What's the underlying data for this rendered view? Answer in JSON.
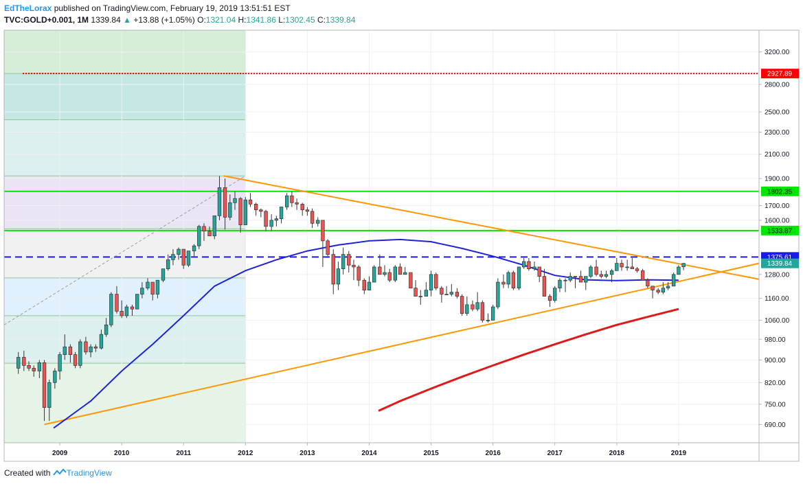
{
  "header": {
    "author": "EdTheLorax",
    "published": "published on TradingView.com, February 19, 2019 13:51:51 EST",
    "symbol": "TVC:GOLD+0.001, 1M",
    "last": "1339.84",
    "arrow": "▲",
    "change": "+13.88 (+1.05%)",
    "o_label": "O:",
    "o_value": "1321.04",
    "h_label": "H:",
    "h_value": "1341.86",
    "l_label": "L:",
    "l_value": "1302.45",
    "c_label": "C:",
    "c_value": "1339.84"
  },
  "footer": {
    "created_with": "Created with",
    "brand": "TradingView"
  },
  "colors": {
    "up": "#26a69a",
    "down": "#ef5350",
    "ma_blue": "#1e22d8",
    "ma_red": "#e11919",
    "trend_orange": "#ff9800",
    "level_green": "#00e600",
    "level_red": "#ff0000",
    "level_blue": "#1a1ae6"
  },
  "chart_data": {
    "type": "candlestick",
    "scale": "log",
    "ylim": [
      640,
      3500
    ],
    "xlim": [
      2008.1,
      2020.3
    ],
    "grid": true,
    "y_ticks": [
      "3200.00",
      "2800.00",
      "2500.00",
      "2300.00",
      "2100.00",
      "1900.00",
      "1700.00",
      "1600.00",
      "1280.00",
      "1160.00",
      "1060.00",
      "980.00",
      "900.00",
      "820.00",
      "750.00",
      "690.00"
    ],
    "x_ticks": [
      {
        "label": "2009",
        "x": 2009
      },
      {
        "label": "2010",
        "x": 2010
      },
      {
        "label": "2011",
        "x": 2011
      },
      {
        "label": "2012",
        "x": 2012
      },
      {
        "label": "2013",
        "x": 2013
      },
      {
        "label": "2014",
        "x": 2014
      },
      {
        "label": "2015",
        "x": 2015
      },
      {
        "label": "2016",
        "x": 2016
      },
      {
        "label": "2017",
        "x": 2017
      },
      {
        "label": "2018",
        "x": 2018
      },
      {
        "label": "2019",
        "x": 2019
      }
    ],
    "price_tags": [
      {
        "label": "2927.89",
        "value": 2927.89,
        "color": "#ff0000",
        "text_color": "#ffffff"
      },
      {
        "label": "1802.35",
        "value": 1802.35,
        "color": "#00e600",
        "text_color": "#131722"
      },
      {
        "label": "1533.87",
        "value": 1533.87,
        "color": "#00e600",
        "text_color": "#131722"
      },
      {
        "label": "1375.61",
        "value": 1375.61,
        "color": "#1a1ae6",
        "text_color": "#ffffff"
      },
      {
        "label": "1339.84",
        "value": 1339.84,
        "color": "#26a69a",
        "text_color": "#ffffff"
      }
    ],
    "horizontal_levels": [
      {
        "value": 2927.89,
        "color": "#ff0000",
        "style": "dotted",
        "from": 2008.4
      },
      {
        "value": 1802.35,
        "color": "#00e600",
        "style": "solid",
        "from": 2008.1
      },
      {
        "value": 1533.87,
        "color": "#00e600",
        "style": "solid",
        "from": 2008.1
      },
      {
        "value": 1375.61,
        "color": "#1a1ae6",
        "style": "dashed",
        "from": 2008.1
      }
    ],
    "fib_retracement": {
      "x0": 2008.1,
      "x1": 2012.0,
      "levels": [
        {
          "value": 3500,
          "fill": "#a5d6a7"
        },
        {
          "value": 2927.89,
          "fill": "#80cbc4"
        },
        {
          "value": 2420,
          "fill": "#b2dfdb"
        },
        {
          "value": 1921,
          "fill": "#d1c4e9"
        },
        {
          "value": 1545,
          "fill": "#e0e0e0"
        },
        {
          "value": 1262,
          "fill": "#bbdefb"
        },
        {
          "value": 1080,
          "fill": "#b2dfdb"
        },
        {
          "value": 888,
          "fill": "#c8e6c9"
        },
        {
          "value": 640,
          "fill": "#dcedc8"
        }
      ]
    },
    "trendlines": [
      {
        "x1": 2008.75,
        "y1": 690,
        "x2": 2020.3,
        "y2": 1340,
        "color": "#ff9800"
      },
      {
        "x1": 2011.65,
        "y1": 1921,
        "x2": 2020.3,
        "y2": 1255,
        "color": "#ff9800"
      },
      {
        "x1": 2008.1,
        "y1": 1040,
        "x2": 2012.0,
        "y2": 1921,
        "color": "#9e9e9e",
        "dash": true
      }
    ],
    "series": [
      {
        "name": "",
        "type": "ma",
        "color": "#1e22d8",
        "points": [
          [
            2008.9,
            680
          ],
          [
            2009.5,
            760
          ],
          [
            2010.0,
            860
          ],
          [
            2010.5,
            960
          ],
          [
            2011.0,
            1080
          ],
          [
            2011.5,
            1220
          ],
          [
            2012.0,
            1300
          ],
          [
            2012.5,
            1360
          ],
          [
            2013.0,
            1410
          ],
          [
            2013.5,
            1445
          ],
          [
            2014.0,
            1470
          ],
          [
            2014.5,
            1478
          ],
          [
            2015.0,
            1465
          ],
          [
            2015.5,
            1425
          ],
          [
            2016.0,
            1380
          ],
          [
            2016.5,
            1330
          ],
          [
            2017.0,
            1275
          ],
          [
            2017.5,
            1252
          ],
          [
            2018.0,
            1248
          ],
          [
            2018.5,
            1252
          ],
          [
            2019.0,
            1250
          ]
        ]
      },
      {
        "name": "",
        "type": "ma",
        "color": "#e11919",
        "points": [
          [
            2014.15,
            730
          ],
          [
            2014.5,
            760
          ],
          [
            2015.0,
            800
          ],
          [
            2015.5,
            840
          ],
          [
            2016.0,
            880
          ],
          [
            2016.5,
            920
          ],
          [
            2017.0,
            960
          ],
          [
            2017.5,
            1000
          ],
          [
            2018.0,
            1040
          ],
          [
            2018.5,
            1075
          ],
          [
            2019.0,
            1110
          ]
        ]
      }
    ],
    "candles": [
      [
        2008.33,
        870,
        930,
        850,
        910
      ],
      [
        2008.42,
        910,
        935,
        860,
        880
      ],
      [
        2008.5,
        880,
        895,
        860,
        870
      ],
      [
        2008.58,
        870,
        880,
        840,
        860
      ],
      [
        2008.67,
        860,
        900,
        835,
        890
      ],
      [
        2008.75,
        890,
        900,
        700,
        740
      ],
      [
        2008.83,
        740,
        830,
        700,
        820
      ],
      [
        2008.92,
        820,
        870,
        800,
        860
      ],
      [
        2009.0,
        860,
        930,
        830,
        920
      ],
      [
        2009.08,
        920,
        1000,
        900,
        950
      ],
      [
        2009.17,
        950,
        960,
        890,
        920
      ],
      [
        2009.25,
        920,
        930,
        870,
        880
      ],
      [
        2009.33,
        880,
        980,
        870,
        970
      ],
      [
        2009.42,
        970,
        990,
        920,
        930
      ],
      [
        2009.5,
        930,
        960,
        910,
        950
      ],
      [
        2009.58,
        950,
        960,
        930,
        945
      ],
      [
        2009.67,
        945,
        1020,
        940,
        1000
      ],
      [
        2009.75,
        1000,
        1070,
        990,
        1040
      ],
      [
        2009.83,
        1040,
        1190,
        1030,
        1180
      ],
      [
        2009.92,
        1180,
        1220,
        1090,
        1100
      ],
      [
        2010.0,
        1100,
        1150,
        1070,
        1080
      ],
      [
        2010.08,
        1080,
        1130,
        1070,
        1120
      ],
      [
        2010.17,
        1120,
        1130,
        1080,
        1110
      ],
      [
        2010.25,
        1110,
        1180,
        1110,
        1180
      ],
      [
        2010.33,
        1180,
        1240,
        1160,
        1210
      ],
      [
        2010.42,
        1210,
        1260,
        1200,
        1240
      ],
      [
        2010.5,
        1240,
        1240,
        1150,
        1180
      ],
      [
        2010.58,
        1180,
        1250,
        1160,
        1250
      ],
      [
        2010.67,
        1250,
        1310,
        1240,
        1310
      ],
      [
        2010.75,
        1310,
        1390,
        1300,
        1360
      ],
      [
        2010.83,
        1360,
        1420,
        1330,
        1390
      ],
      [
        2010.92,
        1390,
        1430,
        1360,
        1420
      ],
      [
        2011.0,
        1420,
        1420,
        1310,
        1330
      ],
      [
        2011.08,
        1330,
        1410,
        1320,
        1410
      ],
      [
        2011.17,
        1410,
        1450,
        1380,
        1440
      ],
      [
        2011.25,
        1440,
        1570,
        1420,
        1560
      ],
      [
        2011.33,
        1560,
        1580,
        1470,
        1530
      ],
      [
        2011.42,
        1530,
        1560,
        1500,
        1500
      ],
      [
        2011.5,
        1500,
        1630,
        1480,
        1630
      ],
      [
        2011.58,
        1630,
        1920,
        1600,
        1830
      ],
      [
        2011.67,
        1830,
        1900,
        1540,
        1620
      ],
      [
        2011.75,
        1620,
        1780,
        1600,
        1720
      ],
      [
        2011.83,
        1720,
        1800,
        1670,
        1750
      ],
      [
        2011.92,
        1750,
        1760,
        1520,
        1570
      ],
      [
        2012.0,
        1570,
        1760,
        1570,
        1740
      ],
      [
        2012.08,
        1740,
        1790,
        1690,
        1710
      ],
      [
        2012.17,
        1710,
        1720,
        1630,
        1670
      ],
      [
        2012.25,
        1670,
        1680,
        1620,
        1660
      ],
      [
        2012.33,
        1660,
        1670,
        1530,
        1560
      ],
      [
        2012.42,
        1560,
        1640,
        1530,
        1600
      ],
      [
        2012.5,
        1600,
        1630,
        1560,
        1610
      ],
      [
        2012.58,
        1610,
        1690,
        1580,
        1690
      ],
      [
        2012.67,
        1690,
        1790,
        1670,
        1770
      ],
      [
        2012.75,
        1770,
        1800,
        1690,
        1720
      ],
      [
        2012.83,
        1720,
        1750,
        1670,
        1710
      ],
      [
        2012.92,
        1710,
        1720,
        1630,
        1670
      ],
      [
        2013.0,
        1670,
        1690,
        1630,
        1660
      ],
      [
        2013.08,
        1660,
        1680,
        1550,
        1580
      ],
      [
        2013.17,
        1580,
        1620,
        1560,
        1600
      ],
      [
        2013.25,
        1600,
        1600,
        1320,
        1470
      ],
      [
        2013.33,
        1470,
        1480,
        1380,
        1390
      ],
      [
        2013.42,
        1390,
        1420,
        1180,
        1230
      ],
      [
        2013.5,
        1230,
        1350,
        1200,
        1310
      ],
      [
        2013.58,
        1310,
        1430,
        1280,
        1390
      ],
      [
        2013.67,
        1390,
        1410,
        1290,
        1330
      ],
      [
        2013.75,
        1330,
        1360,
        1250,
        1320
      ],
      [
        2013.83,
        1320,
        1330,
        1220,
        1250
      ],
      [
        2013.92,
        1250,
        1260,
        1180,
        1200
      ],
      [
        2014.0,
        1200,
        1270,
        1200,
        1240
      ],
      [
        2014.08,
        1240,
        1330,
        1240,
        1320
      ],
      [
        2014.17,
        1320,
        1390,
        1280,
        1280
      ],
      [
        2014.25,
        1280,
        1330,
        1270,
        1290
      ],
      [
        2014.33,
        1290,
        1310,
        1240,
        1250
      ],
      [
        2014.42,
        1250,
        1330,
        1240,
        1320
      ],
      [
        2014.5,
        1320,
        1340,
        1280,
        1280
      ],
      [
        2014.58,
        1280,
        1320,
        1280,
        1290
      ],
      [
        2014.67,
        1290,
        1290,
        1210,
        1210
      ],
      [
        2014.75,
        1210,
        1250,
        1180,
        1170
      ],
      [
        2014.83,
        1170,
        1200,
        1130,
        1170
      ],
      [
        2014.92,
        1170,
        1240,
        1170,
        1200
      ],
      [
        2015.0,
        1200,
        1300,
        1170,
        1280
      ],
      [
        2015.08,
        1280,
        1290,
        1200,
        1210
      ],
      [
        2015.17,
        1210,
        1220,
        1140,
        1180
      ],
      [
        2015.25,
        1180,
        1220,
        1180,
        1180
      ],
      [
        2015.33,
        1180,
        1230,
        1170,
        1190
      ],
      [
        2015.42,
        1190,
        1210,
        1160,
        1170
      ],
      [
        2015.5,
        1170,
        1180,
        1080,
        1090
      ],
      [
        2015.58,
        1090,
        1170,
        1080,
        1130
      ],
      [
        2015.67,
        1130,
        1150,
        1100,
        1110
      ],
      [
        2015.75,
        1110,
        1190,
        1100,
        1140
      ],
      [
        2015.83,
        1140,
        1150,
        1050,
        1060
      ],
      [
        2015.92,
        1060,
        1090,
        1050,
        1060
      ],
      [
        2016.0,
        1060,
        1130,
        1060,
        1120
      ],
      [
        2016.08,
        1120,
        1260,
        1110,
        1240
      ],
      [
        2016.17,
        1240,
        1280,
        1210,
        1230
      ],
      [
        2016.25,
        1230,
        1300,
        1210,
        1290
      ],
      [
        2016.33,
        1290,
        1300,
        1200,
        1210
      ],
      [
        2016.42,
        1210,
        1320,
        1200,
        1320
      ],
      [
        2016.5,
        1320,
        1370,
        1310,
        1350
      ],
      [
        2016.58,
        1350,
        1370,
        1300,
        1310
      ],
      [
        2016.67,
        1310,
        1350,
        1300,
        1320
      ],
      [
        2016.75,
        1320,
        1320,
        1240,
        1270
      ],
      [
        2016.83,
        1270,
        1310,
        1170,
        1170
      ],
      [
        2016.92,
        1170,
        1180,
        1120,
        1150
      ],
      [
        2017.0,
        1150,
        1220,
        1140,
        1210
      ],
      [
        2017.08,
        1210,
        1260,
        1190,
        1250
      ],
      [
        2017.17,
        1250,
        1260,
        1190,
        1250
      ],
      [
        2017.25,
        1250,
        1290,
        1240,
        1270
      ],
      [
        2017.33,
        1270,
        1270,
        1210,
        1270
      ],
      [
        2017.42,
        1270,
        1300,
        1240,
        1240
      ],
      [
        2017.5,
        1240,
        1270,
        1200,
        1270
      ],
      [
        2017.58,
        1270,
        1330,
        1260,
        1320
      ],
      [
        2017.67,
        1320,
        1360,
        1270,
        1280
      ],
      [
        2017.75,
        1280,
        1300,
        1260,
        1270
      ],
      [
        2017.83,
        1270,
        1300,
        1260,
        1280
      ],
      [
        2017.92,
        1280,
        1310,
        1240,
        1300
      ],
      [
        2018.0,
        1300,
        1370,
        1300,
        1340
      ],
      [
        2018.08,
        1340,
        1360,
        1300,
        1320
      ],
      [
        2018.17,
        1320,
        1360,
        1300,
        1320
      ],
      [
        2018.25,
        1320,
        1370,
        1310,
        1310
      ],
      [
        2018.33,
        1310,
        1320,
        1290,
        1300
      ],
      [
        2018.42,
        1300,
        1310,
        1250,
        1250
      ],
      [
        2018.5,
        1250,
        1260,
        1210,
        1220
      ],
      [
        2018.58,
        1220,
        1220,
        1160,
        1200
      ],
      [
        2018.67,
        1200,
        1210,
        1180,
        1190
      ],
      [
        2018.75,
        1190,
        1240,
        1180,
        1210
      ],
      [
        2018.83,
        1210,
        1240,
        1200,
        1220
      ],
      [
        2018.92,
        1220,
        1290,
        1220,
        1280
      ],
      [
        2019.0,
        1280,
        1330,
        1280,
        1320
      ],
      [
        2019.08,
        1321.04,
        1341.86,
        1302.45,
        1339.84
      ]
    ]
  }
}
